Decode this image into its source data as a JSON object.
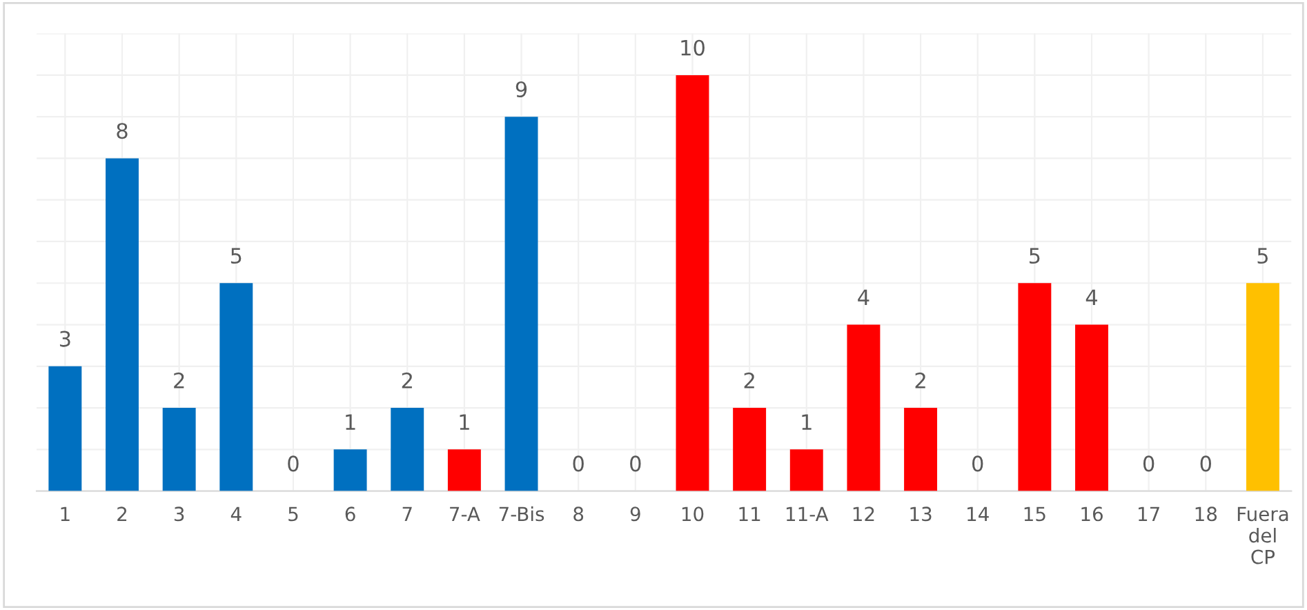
{
  "chart_data": {
    "type": "bar",
    "categories": [
      "1",
      "2",
      "3",
      "4",
      "5",
      "6",
      "7",
      "7-A",
      "7-Bis",
      "8",
      "9",
      "10",
      "11",
      "11-A",
      "12",
      "13",
      "14",
      "15",
      "16",
      "17",
      "18",
      "Fuera\ndel\nCP"
    ],
    "values": [
      3,
      8,
      2,
      5,
      0,
      1,
      2,
      1,
      9,
      0,
      0,
      10,
      2,
      1,
      4,
      2,
      0,
      5,
      4,
      0,
      0,
      5
    ],
    "colors": [
      "#0070c0",
      "#0070c0",
      "#0070c0",
      "#0070c0",
      "#0070c0",
      "#0070c0",
      "#0070c0",
      "#ff0000",
      "#0070c0",
      "#0070c0",
      "#0070c0",
      "#ff0000",
      "#ff0000",
      "#ff0000",
      "#ff0000",
      "#ff0000",
      "#ff0000",
      "#ff0000",
      "#ff0000",
      "#ff0000",
      "#ff0000",
      "#ffc000"
    ],
    "ylim": [
      0,
      11
    ],
    "yticks": [
      {
        "value": 0,
        "label": null
      },
      {
        "value": 1,
        "label": null
      },
      {
        "value": 2,
        "label": null
      },
      {
        "value": 3,
        "label": null
      },
      {
        "value": 4,
        "label": null
      },
      {
        "value": 5,
        "label": null
      },
      {
        "value": 6,
        "label": null
      },
      {
        "value": 7,
        "label": null
      },
      {
        "value": 8,
        "label": null
      },
      {
        "value": 9,
        "label": null
      },
      {
        "value": 10,
        "label": null
      },
      {
        "value": 11,
        "label": null
      }
    ],
    "tick_labels": "x",
    "grid": true,
    "data_labels": true
  }
}
